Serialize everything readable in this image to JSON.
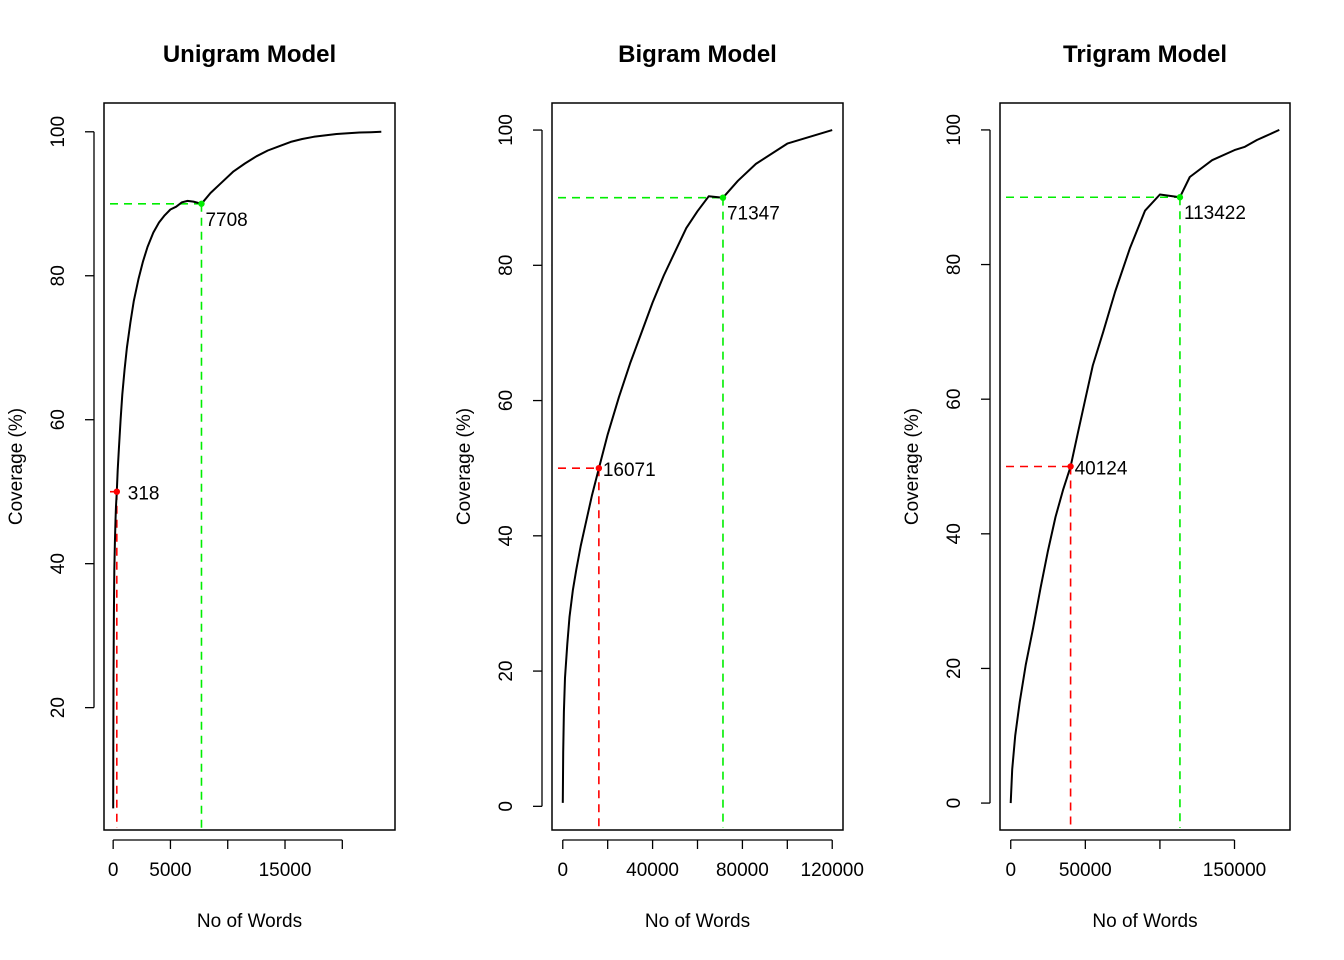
{
  "chart_data": [
    {
      "type": "line",
      "title": "Unigram Model",
      "xlabel": "No of Words",
      "ylabel": "Coverage (%)",
      "xlim": [
        -800,
        24600
      ],
      "ylim": [
        3,
        104
      ],
      "xticks": [
        0,
        5000,
        10000,
        15000,
        20000
      ],
      "xtick_labels": [
        "0",
        "5000",
        "",
        "15000",
        ""
      ],
      "yticks": [
        20,
        40,
        60,
        80,
        100
      ],
      "ytick_labels": [
        "20",
        "40",
        "60",
        "80",
        "100"
      ],
      "series": [
        {
          "x": [
            0,
            10,
            30,
            60,
            100,
            150,
            200,
            250,
            318,
            400,
            500,
            650,
            800,
            1000,
            1200,
            1500,
            1800,
            2200,
            2600,
            3000,
            3500,
            4000,
            4500,
            5000,
            5500,
            6000,
            6500,
            7000,
            7708,
            8500,
            9500,
            10500,
            11500,
            12500,
            13500,
            14500,
            15500,
            16500,
            17500,
            18500,
            19500,
            20500,
            21500,
            22500,
            23400
          ],
          "y": [
            6,
            14,
            24,
            33,
            39,
            43,
            46,
            48,
            50,
            53,
            56,
            60,
            63.5,
            67,
            70,
            73.5,
            76.5,
            79.5,
            82,
            84,
            86,
            87.4,
            88.4,
            89.2,
            89.6,
            90.2,
            90.4,
            90.3,
            90,
            91.5,
            93,
            94.5,
            95.6,
            96.6,
            97.4,
            98,
            98.6,
            99,
            99.3,
            99.5,
            99.7,
            99.8,
            99.9,
            99.95,
            100
          ],
          "color": "#000000"
        }
      ],
      "markers": [
        {
          "x": 318,
          "y": 50,
          "label": "318",
          "color": "#ff0000"
        },
        {
          "x": 7708,
          "y": 90,
          "label": "7708",
          "color": "#00ee00"
        }
      ]
    },
    {
      "type": "line",
      "title": "Bigram Model",
      "xlabel": "No of Words",
      "ylabel": "Coverage (%)",
      "xlim": [
        -4800,
        124800
      ],
      "ylim": [
        -3.5,
        104
      ],
      "xticks": [
        0,
        20000,
        40000,
        60000,
        80000,
        100000,
        120000
      ],
      "xtick_labels": [
        "0",
        "",
        "40000",
        "",
        "80000",
        "",
        "120000"
      ],
      "yticks": [
        0,
        20,
        40,
        60,
        80,
        100
      ],
      "ytick_labels": [
        "0",
        "20",
        "40",
        "60",
        "80",
        "100"
      ],
      "series": [
        {
          "x": [
            0,
            200,
            500,
            1000,
            2000,
            3000,
            4500,
            6000,
            8000,
            10000,
            13000,
            16071,
            20000,
            25000,
            30000,
            35000,
            40000,
            45000,
            50000,
            55000,
            60000,
            65000,
            71347,
            78000,
            86000,
            100000,
            120000
          ],
          "y": [
            0.5,
            8,
            14,
            19,
            24,
            28,
            32,
            35,
            38.5,
            41.5,
            46,
            50,
            55,
            60.5,
            65.5,
            70,
            74.5,
            78.5,
            82,
            85.5,
            88,
            90.2,
            90,
            92.5,
            95,
            98,
            100
          ],
          "color": "#000000"
        }
      ],
      "markers": [
        {
          "x": 16071,
          "y": 50,
          "label": "16071",
          "color": "#ff0000"
        },
        {
          "x": 71347,
          "y": 90,
          "label": "71347",
          "color": "#00ee00"
        }
      ]
    },
    {
      "type": "line",
      "title": "Trigram Model",
      "xlabel": "No of Words",
      "ylabel": "Coverage (%)",
      "xlim": [
        -7200,
        187200
      ],
      "ylim": [
        -4,
        104
      ],
      "xticks": [
        0,
        50000,
        100000,
        150000
      ],
      "xtick_labels": [
        "0",
        "50000",
        "",
        "150000"
      ],
      "yticks": [
        0,
        20,
        40,
        60,
        80,
        100
      ],
      "ytick_labels": [
        "0",
        "20",
        "40",
        "60",
        "80",
        "100"
      ],
      "series": [
        {
          "x": [
            0,
            1000,
            3000,
            6000,
            10000,
            15000,
            20000,
            25000,
            30000,
            35000,
            40124,
            45000,
            50000,
            55000,
            62000,
            70000,
            80000,
            90000,
            100000,
            113422,
            120000,
            135000,
            150000,
            157000,
            165000,
            170000,
            180000
          ],
          "y": [
            0,
            5,
            10,
            15,
            20.5,
            26,
            32,
            37.5,
            42.5,
            46.5,
            50,
            55,
            60,
            65,
            70,
            76,
            82.5,
            88,
            90.4,
            90,
            93,
            95.5,
            97,
            97.5,
            98.5,
            99,
            100
          ],
          "color": "#000000"
        }
      ],
      "markers": [
        {
          "x": 40124,
          "y": 50,
          "label": "40124",
          "color": "#ff0000"
        },
        {
          "x": 113422,
          "y": 90,
          "label": "113422",
          "color": "#00ee00"
        }
      ]
    }
  ]
}
